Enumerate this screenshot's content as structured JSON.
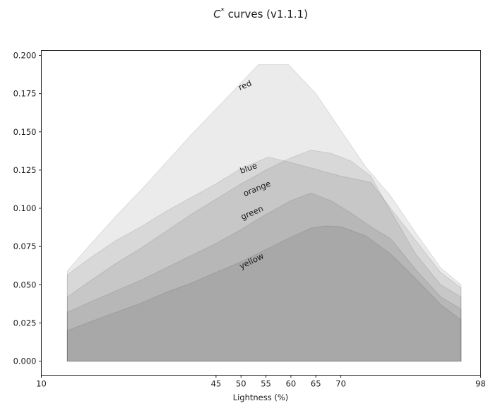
{
  "chart_data": {
    "type": "area",
    "title": {
      "math": "C",
      "sup": "*",
      "rest": " curves (v1.1.1)"
    },
    "xlabel": "Lightness (%)",
    "xlim": [
      10,
      98
    ],
    "ylim": [
      -0.009,
      0.203
    ],
    "grid": false,
    "legend": "none (inline rotated labels on curves)",
    "x_ticks": [
      "10",
      "45",
      "50",
      "55",
      "60",
      "65",
      "70",
      "98"
    ],
    "y_ticks": [
      "0.000",
      "0.025",
      "0.050",
      "0.075",
      "0.100",
      "0.125",
      "0.150",
      "0.175",
      "0.200"
    ],
    "style": {
      "fill": "rgba(0,0,0,0.08)",
      "edge": "rgba(0,0,0,0.10)",
      "spine_color": "#262626",
      "label_color": "#1a1a1a",
      "background": "#ffffff"
    },
    "series": [
      {
        "name": "red",
        "label": {
          "text": "red",
          "L": 50.8,
          "C": 0.1805,
          "rotation": -23
        },
        "points": [
          [
            15.2,
            0.059
          ],
          [
            20,
            0.077
          ],
          [
            25,
            0.095
          ],
          [
            30,
            0.112
          ],
          [
            35,
            0.13
          ],
          [
            40,
            0.148
          ],
          [
            45,
            0.165
          ],
          [
            50,
            0.182
          ],
          [
            53.5,
            0.194
          ],
          [
            59.5,
            0.194
          ],
          [
            65,
            0.175
          ],
          [
            70,
            0.151
          ],
          [
            75,
            0.127
          ],
          [
            80,
            0.108
          ],
          [
            85,
            0.084
          ],
          [
            90,
            0.061
          ],
          [
            94.1,
            0.05
          ]
        ]
      },
      {
        "name": "blue",
        "label": {
          "text": "blue",
          "L": 51.5,
          "C": 0.1263,
          "rotation": -20
        },
        "points": [
          [
            15.2,
            0.0565
          ],
          [
            20,
            0.068
          ],
          [
            25,
            0.079
          ],
          [
            30,
            0.088
          ],
          [
            35,
            0.098
          ],
          [
            40,
            0.107
          ],
          [
            45,
            0.116
          ],
          [
            50,
            0.126
          ],
          [
            55.5,
            0.1335
          ],
          [
            60,
            0.13
          ],
          [
            65,
            0.1255
          ],
          [
            70,
            0.121
          ],
          [
            76,
            0.117
          ],
          [
            80,
            0.1
          ],
          [
            85,
            0.079
          ],
          [
            90,
            0.058
          ],
          [
            94.1,
            0.048
          ]
        ]
      },
      {
        "name": "orange",
        "label": {
          "text": "orange",
          "L": 53.2,
          "C": 0.113,
          "rotation": -22
        },
        "points": [
          [
            15.2,
            0.042
          ],
          [
            20,
            0.053
          ],
          [
            25,
            0.064
          ],
          [
            30,
            0.074
          ],
          [
            35,
            0.085
          ],
          [
            40,
            0.096
          ],
          [
            45,
            0.106
          ],
          [
            50,
            0.116
          ],
          [
            55,
            0.125
          ],
          [
            60,
            0.133
          ],
          [
            64,
            0.138
          ],
          [
            68,
            0.136
          ],
          [
            72,
            0.131
          ],
          [
            76,
            0.121
          ],
          [
            80,
            0.098
          ],
          [
            85,
            0.07
          ],
          [
            90,
            0.05
          ],
          [
            94.1,
            0.042
          ]
        ]
      },
      {
        "name": "green",
        "label": {
          "text": "green",
          "L": 52.2,
          "C": 0.0972,
          "rotation": -24
        },
        "points": [
          [
            15.2,
            0.032
          ],
          [
            20,
            0.039
          ],
          [
            25,
            0.046
          ],
          [
            30,
            0.053
          ],
          [
            35,
            0.061
          ],
          [
            40,
            0.069
          ],
          [
            45,
            0.077
          ],
          [
            50,
            0.086
          ],
          [
            55,
            0.096
          ],
          [
            60,
            0.105
          ],
          [
            64,
            0.11
          ],
          [
            68,
            0.105
          ],
          [
            72,
            0.097
          ],
          [
            76,
            0.088
          ],
          [
            80,
            0.08
          ],
          [
            85,
            0.06
          ],
          [
            90,
            0.042
          ],
          [
            94.1,
            0.034
          ]
        ]
      },
      {
        "name": "yellow",
        "label": {
          "text": "yellow",
          "L": 52.1,
          "C": 0.0655,
          "rotation": -26
        },
        "points": [
          [
            15.2,
            0.02
          ],
          [
            20,
            0.026
          ],
          [
            25,
            0.032
          ],
          [
            30,
            0.038
          ],
          [
            35,
            0.045
          ],
          [
            40,
            0.051
          ],
          [
            45,
            0.058
          ],
          [
            50,
            0.065
          ],
          [
            55,
            0.073
          ],
          [
            60,
            0.081
          ],
          [
            64,
            0.087
          ],
          [
            67,
            0.0885
          ],
          [
            70,
            0.088
          ],
          [
            75,
            0.082
          ],
          [
            80,
            0.07
          ],
          [
            85,
            0.054
          ],
          [
            90,
            0.037
          ],
          [
            94.1,
            0.027
          ]
        ]
      }
    ]
  }
}
